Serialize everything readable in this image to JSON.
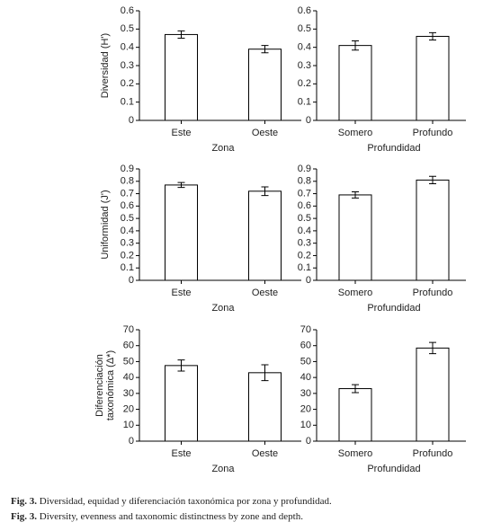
{
  "chart_data": [
    {
      "type": "bar",
      "ylabel": [
        "Diversidad (H')"
      ],
      "xlabel": "Zona",
      "categories": [
        "Este",
        "Oeste"
      ],
      "values": [
        0.47,
        0.39
      ],
      "errors": [
        0.02,
        0.02
      ],
      "color": "#ffffff",
      "edgecolor": "#000000",
      "ylim": [
        0,
        0.6
      ],
      "yticks": [
        0,
        0.1,
        0.2,
        0.3,
        0.4,
        0.5,
        0.6
      ]
    },
    {
      "type": "bar",
      "xlabel": "Profundidad",
      "categories": [
        "Somero",
        "Profundo"
      ],
      "values": [
        0.41,
        0.46
      ],
      "errors": [
        0.025,
        0.02
      ],
      "color": "#ffffff",
      "edgecolor": "#000000",
      "ylim": [
        0,
        0.6
      ],
      "yticks": [
        0,
        0.1,
        0.2,
        0.3,
        0.4,
        0.5,
        0.6
      ]
    },
    {
      "type": "bar",
      "ylabel": [
        "Uniformidad (J')"
      ],
      "xlabel": "Zona",
      "categories": [
        "Este",
        "Oeste"
      ],
      "values": [
        0.77,
        0.72
      ],
      "errors": [
        0.02,
        0.035
      ],
      "color": "#ffffff",
      "edgecolor": "#000000",
      "ylim": [
        0,
        0.9
      ],
      "yticks": [
        0,
        0.1,
        0.2,
        0.3,
        0.4,
        0.5,
        0.6,
        0.7,
        0.8,
        0.9
      ]
    },
    {
      "type": "bar",
      "xlabel": "Profundidad",
      "categories": [
        "Somero",
        "Profundo"
      ],
      "values": [
        0.69,
        0.81
      ],
      "errors": [
        0.025,
        0.03
      ],
      "color": "#ffffff",
      "edgecolor": "#000000",
      "ylim": [
        0,
        0.9
      ],
      "yticks": [
        0,
        0.1,
        0.2,
        0.3,
        0.4,
        0.5,
        0.6,
        0.7,
        0.8,
        0.9
      ]
    },
    {
      "type": "bar",
      "ylabel": [
        "Diferenciación",
        "taxonómica (Δ*)"
      ],
      "xlabel": "Zona",
      "categories": [
        "Este",
        "Oeste"
      ],
      "values": [
        47.5,
        43
      ],
      "errors": [
        3.5,
        5
      ],
      "color": "#ffffff",
      "edgecolor": "#000000",
      "ylim": [
        0,
        70
      ],
      "yticks": [
        0,
        10,
        20,
        30,
        40,
        50,
        60,
        70
      ]
    },
    {
      "type": "bar",
      "xlabel": "Profundidad",
      "categories": [
        "Somero",
        "Profundo"
      ],
      "values": [
        33,
        58.5
      ],
      "errors": [
        2.5,
        3.5
      ],
      "color": "#ffffff",
      "edgecolor": "#000000",
      "ylim": [
        0,
        70
      ],
      "yticks": [
        0,
        10,
        20,
        30,
        40,
        50,
        60,
        70
      ]
    }
  ],
  "captions": [
    {
      "label": "Fig. 3.",
      "text": "Diversidad, equidad y diferenciación taxonómica por zona y profundidad."
    },
    {
      "label": "Fig. 3.",
      "text": "Diversity, evenness and taxonomic distinctness by zone and depth."
    }
  ]
}
